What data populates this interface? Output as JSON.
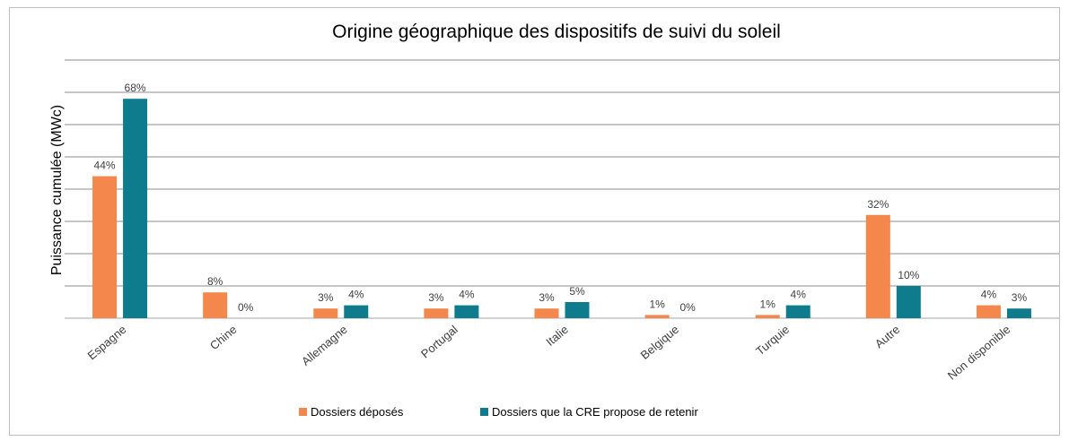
{
  "chart_data": {
    "type": "bar",
    "title": "Origine géographique des dispositifs de suivi du soleil",
    "y_label": "Puissance cumulée (MWc)",
    "categories": [
      "Espagne",
      "Chine",
      "Allemagne",
      "Portugal",
      "Italie",
      "Belgique",
      "Turquie",
      "Autre",
      "Non disponible"
    ],
    "series": [
      {
        "name": "Dossiers déposés",
        "color": "#f4874b",
        "values": [
          44,
          8,
          3,
          3,
          3,
          1,
          1,
          32,
          4
        ],
        "value_labels": [
          "44%",
          "8%",
          "3%",
          "3%",
          "3%",
          "1%",
          "1%",
          "32%",
          "4%"
        ]
      },
      {
        "name": "Dossiers que la CRE propose de retenir",
        "color": "#0e7c8c",
        "values": [
          68,
          0,
          4,
          4,
          5,
          0,
          4,
          10,
          3
        ],
        "value_labels": [
          "68%",
          "0%",
          "4%",
          "4%",
          "5%",
          "0%",
          "4%",
          "10%",
          "3%"
        ]
      }
    ],
    "ylim": [
      0,
      80
    ],
    "yticks": [
      0,
      10,
      20,
      30,
      40,
      50,
      60,
      70,
      80
    ],
    "grid": true,
    "legend": "bottom"
  }
}
